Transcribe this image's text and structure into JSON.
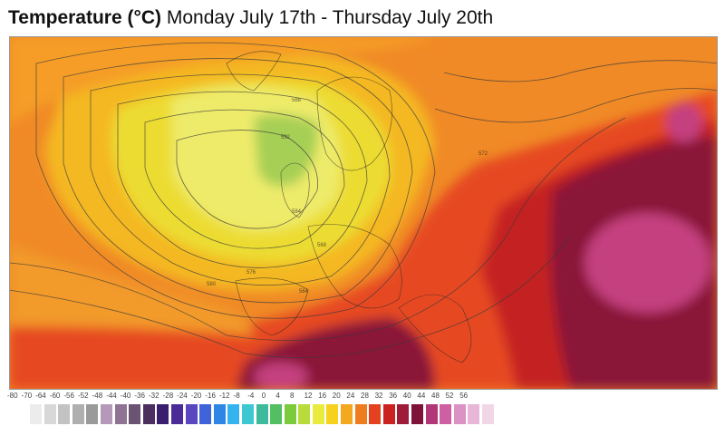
{
  "header": {
    "title_bold": "Temperature (°C)",
    "title_rest": " Monday July 17th - Thursday July 20th"
  },
  "legend": {
    "labels": [
      "-80",
      "-70",
      "-64",
      "-60",
      "-56",
      "-52",
      "-48",
      "-44",
      "-40",
      "-36",
      "-32",
      "-28",
      "-24",
      "-20",
      "-16",
      "-12",
      "-8",
      "-4",
      "0",
      "4",
      "8",
      "12",
      "16",
      "20",
      "24",
      "28",
      "32",
      "36",
      "40",
      "44",
      "48",
      "52",
      "56"
    ],
    "colors": [
      "#ececec",
      "#d8d8d8",
      "#c3c3c3",
      "#afafaf",
      "#9a9a9a",
      "#b49ab8",
      "#8f7393",
      "#6b5473",
      "#4c2f5e",
      "#3a1f6e",
      "#4b2b95",
      "#5a46bf",
      "#3f63d8",
      "#2f86e6",
      "#34b3ef",
      "#3cc7d2",
      "#3dba9b",
      "#53bf62",
      "#7ccb3c",
      "#b8dc3b",
      "#e9eb3d",
      "#f6d21f",
      "#f4a81e",
      "#ee7d1f",
      "#e4411e",
      "#cc2121",
      "#9e1b3a",
      "#7e1238",
      "#b23779",
      "#cf5fa3",
      "#dc92c4",
      "#e8b7d8",
      "#f1d6e8"
    ]
  },
  "map": {
    "contour_labels": [
      "564",
      "568",
      "572",
      "576",
      "580",
      "584",
      "588",
      "592"
    ]
  }
}
